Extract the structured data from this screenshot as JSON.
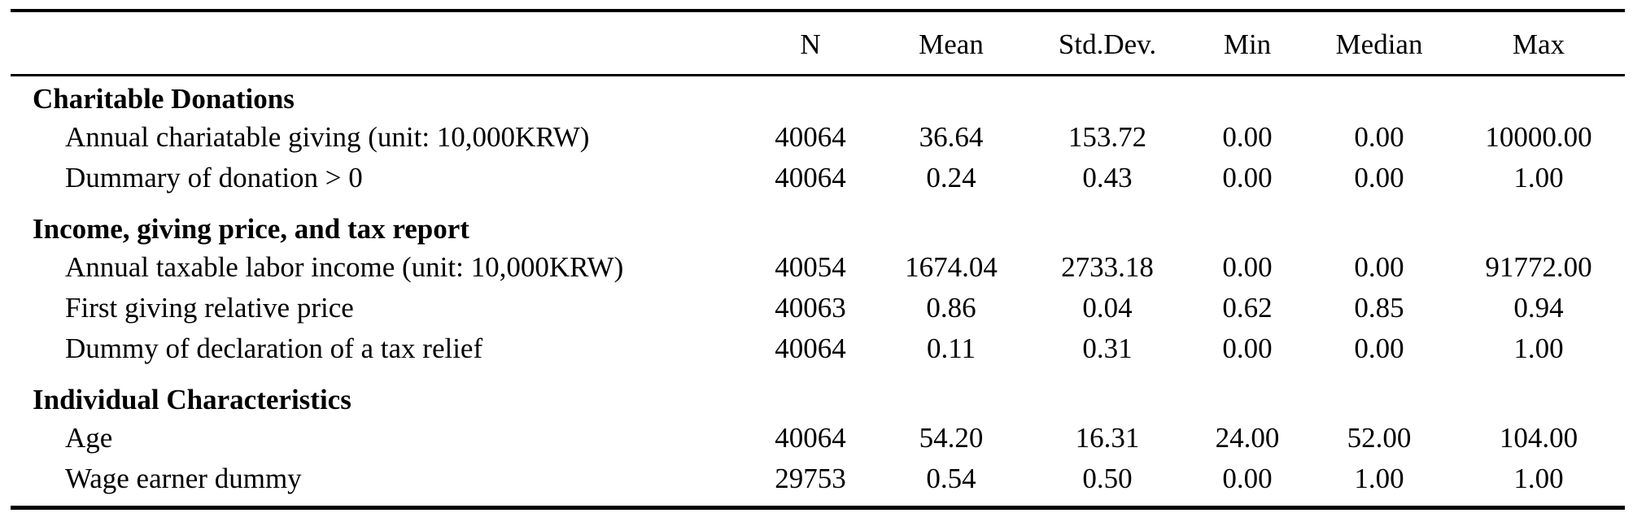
{
  "columns": [
    "N",
    "Mean",
    "Std.Dev.",
    "Min",
    "Median",
    "Max"
  ],
  "sections": [
    {
      "title": "Charitable Donations",
      "rows": [
        {
          "label": "Annual chariatable giving (unit:  10,000KRW)",
          "n": "40064",
          "mean": "36.64",
          "sd": "153.72",
          "min": "0.00",
          "median": "0.00",
          "max": "10000.00"
        },
        {
          "label": "Dummary of donation > 0",
          "n": "40064",
          "mean": "0.24",
          "sd": "0.43",
          "min": "0.00",
          "median": "0.00",
          "max": "1.00"
        }
      ]
    },
    {
      "title": "Income, giving price, and tax report",
      "rows": [
        {
          "label": "Annual taxable labor income (unit:  10,000KRW)",
          "n": "40054",
          "mean": "1674.04",
          "sd": "2733.18",
          "min": "0.00",
          "median": "0.00",
          "max": "91772.00"
        },
        {
          "label": "First giving relative price",
          "n": "40063",
          "mean": "0.86",
          "sd": "0.04",
          "min": "0.62",
          "median": "0.85",
          "max": "0.94"
        },
        {
          "label": "Dummy of declaration of a tax relief",
          "n": "40064",
          "mean": "0.11",
          "sd": "0.31",
          "min": "0.00",
          "median": "0.00",
          "max": "1.00"
        }
      ]
    },
    {
      "title": "Individual Characteristics",
      "rows": [
        {
          "label": "Age",
          "n": "40064",
          "mean": "54.20",
          "sd": "16.31",
          "min": "24.00",
          "median": "52.00",
          "max": "104.00"
        },
        {
          "label": "Wage earner dummy",
          "n": "29753",
          "mean": "0.54",
          "sd": "0.50",
          "min": "0.00",
          "median": "1.00",
          "max": "1.00"
        }
      ]
    }
  ]
}
